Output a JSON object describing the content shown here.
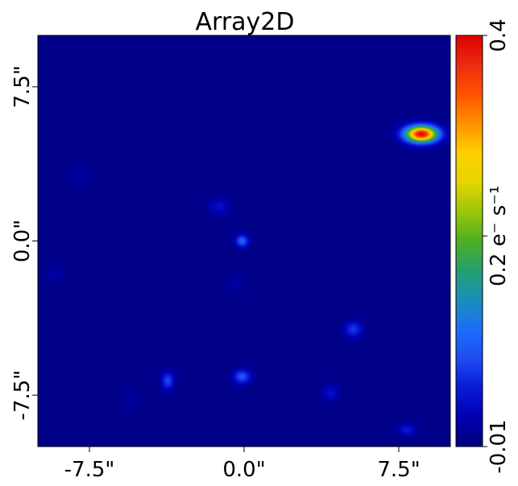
{
  "chart_data": {
    "type": "heatmap",
    "title": "Array2D",
    "xlabel": "",
    "ylabel": "",
    "xlim": [
      -10,
      10
    ],
    "ylim": [
      -10,
      10
    ],
    "x_ticks": [
      {
        "value": -7.5,
        "label": "-7.5\""
      },
      {
        "value": 0.0,
        "label": "0.0\""
      },
      {
        "value": 7.5,
        "label": "7.5\""
      }
    ],
    "y_ticks": [
      {
        "value": 7.5,
        "label": "7.5\""
      },
      {
        "value": 0.0,
        "label": "0.0\""
      },
      {
        "value": -7.5,
        "label": "-7.5\""
      }
    ],
    "background_value": -0.005,
    "sources": [
      {
        "x": 8.6,
        "y": 5.2,
        "peak": 0.4,
        "sx": 0.55,
        "sy": 0.28
      },
      {
        "x": -0.1,
        "y": 0.0,
        "peak": 0.1,
        "sx": 0.22,
        "sy": 0.22
      },
      {
        "x": -1.2,
        "y": 1.7,
        "peak": 0.04,
        "sx": 0.35,
        "sy": 0.3
      },
      {
        "x": 5.3,
        "y": -4.3,
        "peak": 0.07,
        "sx": 0.3,
        "sy": 0.28
      },
      {
        "x": -3.7,
        "y": -6.8,
        "peak": 0.08,
        "sx": 0.22,
        "sy": 0.3
      },
      {
        "x": -0.1,
        "y": -6.6,
        "peak": 0.09,
        "sx": 0.3,
        "sy": 0.25
      },
      {
        "x": 4.2,
        "y": -7.4,
        "peak": 0.04,
        "sx": 0.3,
        "sy": 0.28
      },
      {
        "x": 7.9,
        "y": -9.2,
        "peak": 0.05,
        "sx": 0.3,
        "sy": 0.2
      },
      {
        "x": -9.2,
        "y": -1.6,
        "peak": 0.02,
        "sx": 0.3,
        "sy": 0.3
      },
      {
        "x": -0.4,
        "y": -2.1,
        "peak": 0.02,
        "sx": 0.3,
        "sy": 0.3
      },
      {
        "x": -8.0,
        "y": 3.2,
        "peak": 0.015,
        "sx": 0.4,
        "sy": 0.4
      },
      {
        "x": -5.5,
        "y": -7.7,
        "peak": 0.015,
        "sx": 0.3,
        "sy": 0.3
      }
    ],
    "colorbar": {
      "min": -0.01,
      "max": 0.4,
      "label": "e⁻ s⁻¹",
      "ticks": [
        {
          "value": 0.4,
          "label": "0.4"
        },
        {
          "value": 0.2,
          "label": "0.2 e⁻ s⁻¹"
        },
        {
          "value": -0.01,
          "label": "-0.01"
        }
      ],
      "colormap": [
        "#000080",
        "#0000b0",
        "#0a1ad8",
        "#1f4cf2",
        "#1c6ef7",
        "#1a8fb8",
        "#23a070",
        "#4fae22",
        "#9ac70a",
        "#e6d500",
        "#ffcf00",
        "#ff9000",
        "#ff5300",
        "#ee2a10",
        "#dd0000"
      ]
    },
    "grid": false
  }
}
